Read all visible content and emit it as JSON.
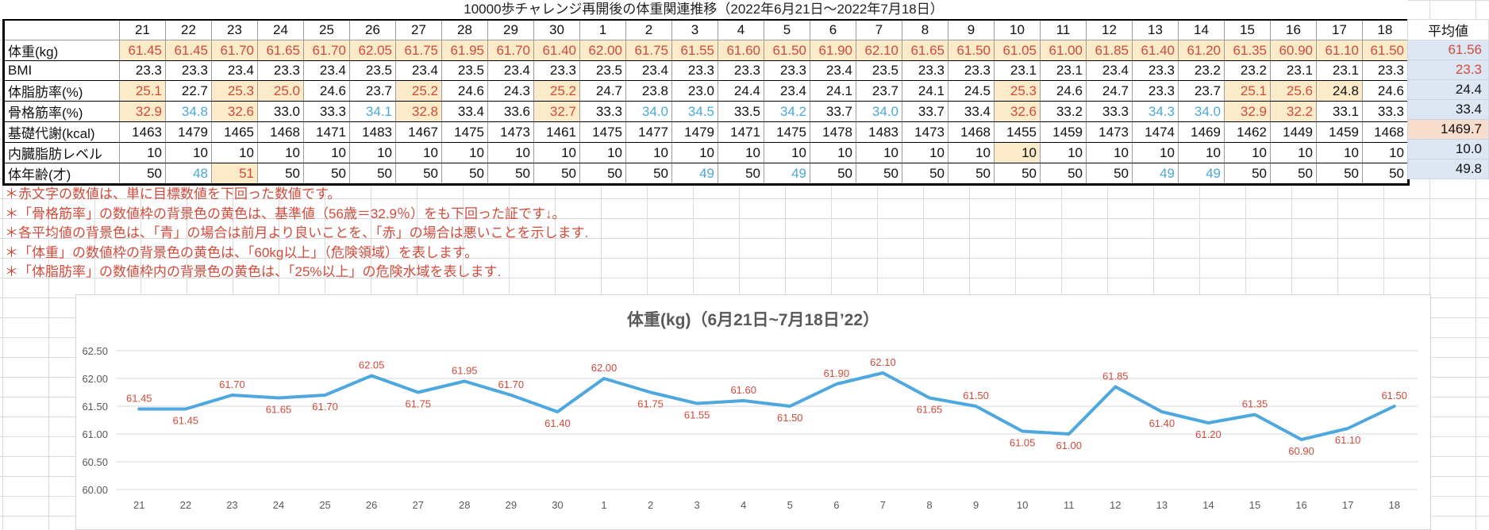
{
  "sheet": {
    "title": "10000歩チャレンジ再開後の体重関連推移（2022年6月21日～2022年7月18日）",
    "days": [
      "21",
      "22",
      "23",
      "24",
      "25",
      "26",
      "27",
      "28",
      "29",
      "30",
      "1",
      "2",
      "3",
      "4",
      "5",
      "6",
      "7",
      "8",
      "9",
      "10",
      "11",
      "12",
      "13",
      "14",
      "15",
      "16",
      "17",
      "18"
    ],
    "average_header": "平均値",
    "rows": [
      {
        "label": "体重(kg)",
        "values": [
          "61.45",
          "61.45",
          "61.70",
          "61.65",
          "61.70",
          "62.05",
          "61.75",
          "61.95",
          "61.70",
          "61.40",
          "62.00",
          "61.75",
          "61.55",
          "61.60",
          "61.50",
          "61.90",
          "62.10",
          "61.65",
          "61.50",
          "61.05",
          "61.00",
          "61.85",
          "61.40",
          "61.20",
          "61.35",
          "60.90",
          "61.10",
          "61.50"
        ],
        "highlight": [
          1,
          1,
          1,
          1,
          1,
          1,
          1,
          1,
          1,
          1,
          1,
          1,
          1,
          1,
          1,
          1,
          1,
          1,
          1,
          1,
          1,
          1,
          1,
          1,
          1,
          1,
          1,
          1
        ],
        "color": [
          "red",
          "red",
          "red",
          "red",
          "red",
          "red",
          "red",
          "red",
          "red",
          "red",
          "red",
          "red",
          "red",
          "red",
          "red",
          "red",
          "red",
          "red",
          "red",
          "red",
          "red",
          "red",
          "red",
          "red",
          "red",
          "red",
          "red",
          "red"
        ],
        "average": "61.56",
        "average_color": "red",
        "average_bg": "blue"
      },
      {
        "label": "BMI",
        "values": [
          "23.3",
          "23.3",
          "23.4",
          "23.3",
          "23.4",
          "23.5",
          "23.4",
          "23.5",
          "23.4",
          "23.3",
          "23.5",
          "23.4",
          "23.3",
          "23.3",
          "23.3",
          "23.4",
          "23.5",
          "23.3",
          "23.3",
          "23.1",
          "23.1",
          "23.4",
          "23.3",
          "23.2",
          "23.2",
          "23.1",
          "23.1",
          "23.3"
        ],
        "highlight": [
          0,
          0,
          0,
          0,
          0,
          0,
          0,
          0,
          0,
          0,
          0,
          0,
          0,
          0,
          0,
          0,
          0,
          0,
          0,
          0,
          0,
          0,
          0,
          0,
          0,
          0,
          0,
          0
        ],
        "color": [
          "",
          "",
          "",
          "",
          "",
          "",
          "",
          "",
          "",
          "",
          "",
          "",
          "",
          "",
          "",
          "",
          "",
          "",
          "",
          "",
          "",
          "",
          "",
          "",
          "",
          "",
          "",
          ""
        ],
        "average": "23.3",
        "average_color": "red",
        "average_bg": "blue"
      },
      {
        "label": "体脂肪率(%)",
        "values": [
          "25.1",
          "22.7",
          "25.3",
          "25.0",
          "24.6",
          "23.7",
          "25.2",
          "24.6",
          "24.3",
          "25.2",
          "24.7",
          "23.8",
          "23.0",
          "24.4",
          "23.4",
          "24.1",
          "23.7",
          "24.1",
          "24.5",
          "25.3",
          "24.6",
          "24.7",
          "23.3",
          "23.7",
          "25.1",
          "25.6",
          "24.8",
          "24.6"
        ],
        "highlight": [
          1,
          0,
          1,
          1,
          0,
          0,
          1,
          0,
          0,
          1,
          0,
          0,
          0,
          0,
          0,
          0,
          0,
          0,
          0,
          1,
          0,
          0,
          0,
          0,
          1,
          1,
          1,
          0
        ],
        "color": [
          "red",
          "",
          "red",
          "red",
          "",
          "",
          "red",
          "",
          "",
          "red",
          "",
          "",
          "",
          "",
          "",
          "",
          "",
          "",
          "",
          "red",
          "",
          "",
          "",
          "",
          "red",
          "red",
          "",
          ""
        ],
        "average": "24.4",
        "average_color": "",
        "average_bg": "blue"
      },
      {
        "label": "骨格筋率(%)",
        "values": [
          "32.9",
          "34.8",
          "32.6",
          "33.0",
          "33.3",
          "34.1",
          "32.8",
          "33.4",
          "33.6",
          "32.7",
          "33.3",
          "34.0",
          "34.5",
          "33.5",
          "34.2",
          "33.7",
          "34.0",
          "33.7",
          "33.4",
          "32.6",
          "33.2",
          "33.3",
          "34.3",
          "34.0",
          "32.9",
          "32.2",
          "33.1",
          "33.3"
        ],
        "highlight": [
          1,
          0,
          1,
          0,
          0,
          0,
          1,
          0,
          0,
          1,
          0,
          0,
          0,
          0,
          0,
          0,
          0,
          0,
          0,
          1,
          0,
          0,
          0,
          0,
          1,
          1,
          0,
          0
        ],
        "color": [
          "red",
          "blue",
          "red",
          "",
          "",
          "blue",
          "red",
          "",
          "",
          "red",
          "",
          "blue",
          "blue",
          "",
          "blue",
          "",
          "blue",
          "",
          "",
          "red",
          "",
          "",
          "blue",
          "blue",
          "red",
          "red",
          "",
          ""
        ],
        "average": "33.4",
        "average_color": "",
        "average_bg": "blue"
      },
      {
        "label": "基礎代謝(kcal)",
        "values": [
          "1463",
          "1479",
          "1465",
          "1468",
          "1471",
          "1483",
          "1467",
          "1475",
          "1473",
          "1461",
          "1475",
          "1477",
          "1479",
          "1471",
          "1475",
          "1478",
          "1483",
          "1473",
          "1468",
          "1455",
          "1459",
          "1473",
          "1474",
          "1469",
          "1462",
          "1449",
          "1459",
          "1468"
        ],
        "highlight": [
          0,
          0,
          0,
          0,
          0,
          0,
          0,
          0,
          0,
          0,
          0,
          0,
          0,
          0,
          0,
          0,
          0,
          0,
          0,
          0,
          0,
          0,
          0,
          0,
          0,
          0,
          0,
          0
        ],
        "color": [
          "",
          "",
          "",
          "",
          "",
          "",
          "",
          "",
          "",
          "",
          "",
          "",
          "",
          "",
          "",
          "",
          "",
          "",
          "",
          "",
          "",
          "",
          "",
          "",
          "",
          "",
          "",
          ""
        ],
        "average": "1469.7",
        "average_color": "",
        "average_bg": "red"
      },
      {
        "label": "内臓脂肪レベル",
        "values": [
          "10",
          "10",
          "10",
          "10",
          "10",
          "10",
          "10",
          "10",
          "10",
          "10",
          "10",
          "10",
          "10",
          "10",
          "10",
          "10",
          "10",
          "10",
          "10",
          "10",
          "10",
          "10",
          "10",
          "10",
          "10",
          "10",
          "10",
          "10"
        ],
        "highlight": [
          0,
          0,
          0,
          0,
          0,
          0,
          0,
          0,
          0,
          0,
          0,
          0,
          0,
          0,
          0,
          0,
          0,
          0,
          0,
          1,
          0,
          0,
          0,
          0,
          0,
          0,
          0,
          0
        ],
        "color": [
          "",
          "",
          "",
          "",
          "",
          "",
          "",
          "",
          "",
          "",
          "",
          "",
          "",
          "",
          "",
          "",
          "",
          "",
          "",
          "",
          "",
          "",
          "",
          "",
          "",
          "",
          "",
          ""
        ],
        "average": "10.0",
        "average_color": "",
        "average_bg": "blue"
      },
      {
        "label": "体年齢(才)",
        "values": [
          "50",
          "48",
          "51",
          "50",
          "50",
          "50",
          "50",
          "50",
          "50",
          "50",
          "50",
          "50",
          "49",
          "50",
          "49",
          "50",
          "50",
          "50",
          "50",
          "50",
          "50",
          "50",
          "49",
          "49",
          "50",
          "50",
          "50",
          "50"
        ],
        "highlight": [
          0,
          0,
          1,
          0,
          0,
          0,
          0,
          0,
          0,
          0,
          0,
          0,
          0,
          0,
          0,
          0,
          0,
          0,
          0,
          0,
          0,
          0,
          0,
          0,
          0,
          0,
          0,
          0
        ],
        "color": [
          "",
          "blue",
          "red",
          "",
          "",
          "",
          "",
          "",
          "",
          "",
          "",
          "",
          "blue",
          "",
          "blue",
          "",
          "",
          "",
          "",
          "",
          "",
          "",
          "blue",
          "blue",
          "",
          "",
          "",
          ""
        ],
        "average": "49.8",
        "average_color": "",
        "average_bg": "blue"
      }
    ],
    "notes": [
      "＊赤文字の数値は、単に目標数値を下回った数値です。",
      "＊「骨格筋率」の数値枠の背景色の黄色は、基準値（56歳＝32.9％）をも下回った証です↓。",
      "＊各平均値の背景色は、「青」の場合は前月より良いことを、「赤」の場合は悪いことを示します.",
      "＊「体重」の数値枠の背景色の黄色は、「60kg以上」（危険領域）を表します。",
      "＊「体脂肪率」の数値枠内の背景色の黄色は、「25%以上」の危険水域を表します."
    ]
  },
  "colors": {
    "red_text": "#d24a3a",
    "blue_text": "#4aa8d8",
    "highlight": "#fbebc8",
    "avg_blue": "#dde7f3",
    "avg_red": "#f8dccc",
    "line": "#4ea8de"
  },
  "chart_data": {
    "type": "line",
    "title": "体重(kg)（6月21日~7月18日’22）",
    "categories": [
      "21",
      "22",
      "23",
      "24",
      "25",
      "26",
      "27",
      "28",
      "29",
      "30",
      "1",
      "2",
      "3",
      "4",
      "5",
      "6",
      "7",
      "8",
      "9",
      "10",
      "11",
      "12",
      "13",
      "14",
      "15",
      "16",
      "17",
      "18"
    ],
    "values": [
      61.45,
      61.45,
      61.7,
      61.65,
      61.7,
      62.05,
      61.75,
      61.95,
      61.7,
      61.4,
      62.0,
      61.75,
      61.55,
      61.6,
      61.5,
      61.9,
      62.1,
      61.65,
      61.5,
      61.05,
      61.0,
      61.85,
      61.4,
      61.2,
      61.35,
      60.9,
      61.1,
      61.5
    ],
    "data_labels": [
      "61.45",
      "61.45",
      "61.70",
      "61.65",
      "61.70",
      "62.05",
      "61.75",
      "61.95",
      "61.70",
      "61.40",
      "62.00",
      "61.75",
      "61.55",
      "61.60",
      "61.50",
      "61.90",
      "62.10",
      "61.65",
      "61.50",
      "61.05",
      "61.00",
      "61.85",
      "61.40",
      "61.20",
      "61.35",
      "60.90",
      "61.10",
      "61.50"
    ],
    "y_ticks": [
      "60.00",
      "60.50",
      "61.00",
      "61.50",
      "62.00",
      "62.50"
    ],
    "ylim": [
      60.0,
      62.5
    ],
    "grid": true,
    "legend": "none",
    "xlabel": "",
    "ylabel": ""
  }
}
